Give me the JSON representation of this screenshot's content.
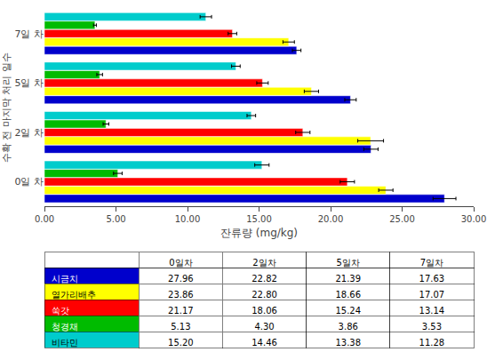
{
  "chart_data": [
    {
      "type": "bar",
      "orientation": "horizontal",
      "categories": [
        "0일 차",
        "2일 차",
        "5일 차",
        "7일 차"
      ],
      "series": [
        {
          "name": "시금치",
          "color": "#0000CC",
          "values": [
            27.96,
            22.82,
            21.39,
            17.63
          ],
          "errors": [
            0.8,
            0.5,
            0.4,
            0.3
          ]
        },
        {
          "name": "열가리배추",
          "color": "#FFFF00",
          "values": [
            23.86,
            22.8,
            18.66,
            17.07
          ],
          "errors": [
            0.5,
            0.9,
            0.5,
            0.4
          ]
        },
        {
          "name": "쑥갓",
          "color": "#FF0000",
          "values": [
            21.17,
            18.06,
            15.24,
            13.14
          ],
          "errors": [
            0.5,
            0.5,
            0.4,
            0.3
          ]
        },
        {
          "name": "청경채",
          "color": "#00BB00",
          "values": [
            5.13,
            4.3,
            3.86,
            3.53
          ],
          "errors": [
            0.3,
            0.2,
            0.2,
            0.1
          ]
        },
        {
          "name": "비타민",
          "color": "#00CCCC",
          "values": [
            15.2,
            14.46,
            13.38,
            11.28
          ],
          "errors": [
            0.5,
            0.3,
            0.3,
            0.4
          ]
        }
      ],
      "xlabel": "잔류량 (mg/kg)",
      "ylabel": "수확 전 마지막 처리 일수",
      "xlim": [
        0,
        30.0
      ],
      "xticks": [
        {
          "value": 0,
          "label": "0.00"
        },
        {
          "value": 5,
          "label": "5.00"
        },
        {
          "value": 10,
          "label": "10.00"
        },
        {
          "value": 15,
          "label": "15.00"
        },
        {
          "value": 20,
          "label": "20.00"
        },
        {
          "value": 25,
          "label": "25.00"
        },
        {
          "value": 30,
          "label": "30.00"
        }
      ],
      "grid": false
    },
    {
      "type": "table",
      "categories": [
        "0일차",
        "2일차",
        "5일차",
        "7일차"
      ],
      "series": [
        {
          "name": "시금치",
          "color": "#0000CC",
          "values": [
            27.96,
            22.82,
            21.39,
            17.63
          ],
          "value_labels": [
            "27.96",
            "22.82",
            "21.39",
            "17.63"
          ]
        },
        {
          "name": "열가리배추",
          "color": "#FFFF00",
          "values": [
            23.86,
            22.8,
            18.66,
            17.07
          ],
          "value_labels": [
            "23.86",
            "22.80",
            "18.66",
            "17.07"
          ]
        },
        {
          "name": "쑥갓",
          "color": "#FF0000",
          "values": [
            21.17,
            18.06,
            15.24,
            13.14
          ],
          "value_labels": [
            "21.17",
            "18.06",
            "15.24",
            "13.14"
          ]
        },
        {
          "name": "청경채",
          "color": "#00BB00",
          "values": [
            5.13,
            4.3,
            3.86,
            3.53
          ],
          "value_labels": [
            "5.13",
            "4.30",
            "3.86",
            "3.53"
          ]
        },
        {
          "name": "비타민",
          "color": "#00CCCC",
          "values": [
            15.2,
            14.46,
            13.38,
            11.28
          ],
          "value_labels": [
            "15.20",
            "14.46",
            "13.38",
            "11.28"
          ]
        }
      ]
    }
  ]
}
